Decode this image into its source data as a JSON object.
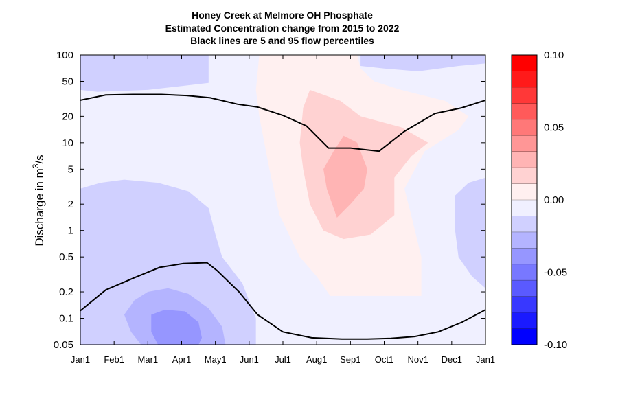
{
  "chart_data": {
    "type": "heatmap",
    "title": [
      "Honey Creek at Melmore OH  Phosphate",
      "Estimated Concentration change from 2015 to 2022",
      "Black lines are 5 and 95 flow percentiles"
    ],
    "ylabel": {
      "main": "Discharge in m",
      "sup": "3",
      "tail": "/s"
    },
    "y_scale": "log",
    "ylim": [
      0.05,
      100
    ],
    "y_ticks": [
      {
        "value": 0.05,
        "label": "0.05"
      },
      {
        "value": 0.1,
        "label": "0.1"
      },
      {
        "value": 0.2,
        "label": "0.2"
      },
      {
        "value": 0.5,
        "label": "0.5"
      },
      {
        "value": 1,
        "label": "1"
      },
      {
        "value": 2,
        "label": "2"
      },
      {
        "value": 5,
        "label": "5"
      },
      {
        "value": 10,
        "label": "10"
      },
      {
        "value": 20,
        "label": "20"
      },
      {
        "value": 50,
        "label": "50"
      },
      {
        "value": 100,
        "label": "100"
      }
    ],
    "xlim": [
      0,
      12
    ],
    "x_ticks": [
      "Jan1",
      "Feb1",
      "Mar1",
      "Apr1",
      "May1",
      "Jun1",
      "Jul1",
      "Aug1",
      "Sep1",
      "Oct1",
      "Nov1",
      "Dec1",
      "Jan1"
    ],
    "colorbar": {
      "range": [
        -0.1,
        0.1
      ],
      "labels": [
        {
          "value": 0.1,
          "label": "0.10"
        },
        {
          "value": 0.05,
          "label": "0.05"
        },
        {
          "value": 0.0,
          "label": "0.00"
        },
        {
          "value": -0.05,
          "label": "-0.05"
        },
        {
          "value": -0.1,
          "label": "-0.10"
        }
      ],
      "colors": [
        "#0000ff",
        "#1a1aff",
        "#3838ff",
        "#5a5aff",
        "#7878ff",
        "#9696ff",
        "#b4b4ff",
        "#d0d0ff",
        "#f0f0ff",
        "#fff0f0",
        "#ffd2d2",
        "#ffb4b4",
        "#ff9696",
        "#ff7878",
        "#ff5a5a",
        "#ff3838",
        "#ff1a1a",
        "#ff0000"
      ]
    },
    "background_value": -0.005,
    "regions": [
      {
        "value": -0.015,
        "points": [
          [
            0,
            70
          ],
          [
            0,
            40
          ],
          [
            0.5,
            38
          ],
          [
            2,
            40
          ],
          [
            3.8,
            48
          ],
          [
            3.8,
            100
          ],
          [
            0,
            100
          ]
        ]
      },
      {
        "value": -0.015,
        "points": [
          [
            8.3,
            100
          ],
          [
            8.3,
            75
          ],
          [
            9,
            70
          ],
          [
            10,
            65
          ],
          [
            11.2,
            75
          ],
          [
            12,
            80
          ],
          [
            12,
            100
          ]
        ]
      },
      {
        "value": -0.015,
        "points": [
          [
            0,
            3
          ],
          [
            0.6,
            3.5
          ],
          [
            1.3,
            3.8
          ],
          [
            2.3,
            3.5
          ],
          [
            3.2,
            2.8
          ],
          [
            3.8,
            1.8
          ],
          [
            4.0,
            0.9
          ],
          [
            4.2,
            0.5
          ],
          [
            4.8,
            0.25
          ],
          [
            5.2,
            0.1
          ],
          [
            5.2,
            0.05
          ],
          [
            0,
            0.05
          ]
        ]
      },
      {
        "value": -0.015,
        "points": [
          [
            12,
            4
          ],
          [
            11.5,
            3.5
          ],
          [
            11.1,
            2.5
          ],
          [
            11.1,
            1
          ],
          [
            11.2,
            0.5
          ],
          [
            11.6,
            0.3
          ],
          [
            12,
            0.22
          ]
        ]
      },
      {
        "value": -0.025,
        "points": [
          [
            1.3,
            0.11
          ],
          [
            1.6,
            0.16
          ],
          [
            2.0,
            0.2
          ],
          [
            2.6,
            0.22
          ],
          [
            3.2,
            0.19
          ],
          [
            3.8,
            0.13
          ],
          [
            4.2,
            0.08
          ],
          [
            4.3,
            0.05
          ],
          [
            1.8,
            0.05
          ],
          [
            1.5,
            0.07
          ]
        ]
      },
      {
        "value": -0.035,
        "points": [
          [
            2.1,
            0.11
          ],
          [
            2.5,
            0.125
          ],
          [
            3.1,
            0.12
          ],
          [
            3.5,
            0.09
          ],
          [
            3.6,
            0.06
          ],
          [
            3.5,
            0.05
          ],
          [
            2.3,
            0.05
          ],
          [
            2.1,
            0.07
          ]
        ]
      },
      {
        "value": 0.005,
        "points": [
          [
            5.3,
            100
          ],
          [
            5.2,
            40
          ],
          [
            5.3,
            20
          ],
          [
            5.6,
            5
          ],
          [
            5.9,
            1.5
          ],
          [
            6.5,
            0.5
          ],
          [
            7.0,
            0.3
          ],
          [
            7.4,
            0.18
          ],
          [
            10.1,
            0.18
          ],
          [
            10.1,
            0.5
          ],
          [
            9.8,
            1.5
          ],
          [
            9.6,
            3
          ],
          [
            10.2,
            8
          ],
          [
            11.2,
            14
          ],
          [
            11.5,
            20
          ],
          [
            10.8,
            30
          ],
          [
            9.5,
            40
          ],
          [
            8.7,
            50
          ],
          [
            8.3,
            70
          ],
          [
            8.2,
            100
          ]
        ]
      },
      {
        "value": 0.015,
        "points": [
          [
            6.6,
            25
          ],
          [
            6.8,
            40
          ],
          [
            7.7,
            30
          ],
          [
            8.3,
            20
          ],
          [
            9.5,
            15
          ],
          [
            10.3,
            10
          ],
          [
            9.8,
            7
          ],
          [
            9.3,
            4
          ],
          [
            9.3,
            1.5
          ],
          [
            8.6,
            0.9
          ],
          [
            7.8,
            0.8
          ],
          [
            7.2,
            1
          ],
          [
            6.8,
            2
          ],
          [
            6.6,
            5
          ],
          [
            6.5,
            10
          ]
        ]
      },
      {
        "value": 0.025,
        "points": [
          [
            7.2,
            5
          ],
          [
            7.5,
            8
          ],
          [
            7.8,
            12
          ],
          [
            8.2,
            10
          ],
          [
            8.5,
            5
          ],
          [
            8.4,
            3
          ],
          [
            8.0,
            2
          ],
          [
            7.6,
            1.4
          ],
          [
            7.3,
            3
          ]
        ]
      },
      {
        "value": 0.005,
        "points": [
          [
            6.6,
            100
          ],
          [
            6.6,
            90
          ],
          [
            7.2,
            85
          ],
          [
            8.2,
            90
          ],
          [
            8.1,
            100
          ]
        ]
      }
    ],
    "series": [
      {
        "name": "95 flow percentile",
        "x": [
          0,
          0.75,
          1.55,
          2.4,
          3.15,
          3.85,
          4.65,
          5.25,
          6.0,
          6.7,
          7.35,
          8.0,
          8.85,
          9.6,
          10.5,
          11.3,
          12.0
        ],
        "y": [
          30.5,
          35,
          35.5,
          35.5,
          34.5,
          32.5,
          27.5,
          25.5,
          20.5,
          15.5,
          8.7,
          8.7,
          8.0,
          13.5,
          21.5,
          25,
          30.5
        ]
      },
      {
        "name": "5 flow percentile",
        "x": [
          0,
          0.75,
          1.6,
          2.35,
          3.05,
          3.75,
          4.05,
          4.7,
          5.25,
          6.0,
          6.85,
          7.75,
          8.5,
          9.2,
          9.9,
          10.6,
          11.3,
          12.0
        ],
        "y": [
          0.122,
          0.21,
          0.29,
          0.38,
          0.42,
          0.43,
          0.35,
          0.2,
          0.11,
          0.07,
          0.06,
          0.058,
          0.058,
          0.059,
          0.062,
          0.07,
          0.09,
          0.125
        ]
      }
    ]
  }
}
